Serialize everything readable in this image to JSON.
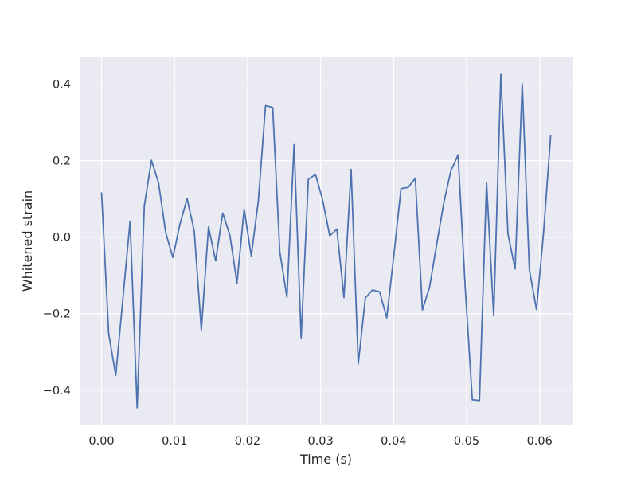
{
  "chart_data": {
    "type": "line",
    "title": "",
    "xlabel": "Time (s)",
    "ylabel": "Whitened strain",
    "xlim": [
      -0.003,
      0.0645
    ],
    "ylim": [
      -0.49,
      0.47
    ],
    "xticks": [
      0.0,
      0.01,
      0.02,
      0.03,
      0.04,
      0.05,
      0.06
    ],
    "xtick_labels": [
      "0.00",
      "0.01",
      "0.02",
      "0.03",
      "0.04",
      "0.05",
      "0.06"
    ],
    "yticks": [
      -0.4,
      -0.2,
      0.0,
      0.2,
      0.4
    ],
    "ytick_labels": [
      "−0.4",
      "−0.2",
      "0.0",
      "0.2",
      "0.4"
    ],
    "grid": true,
    "colors": {
      "background": "#eaeaf2",
      "grid": "#ffffff",
      "line": "#4c72b0"
    },
    "series": [
      {
        "x": [
          0.0,
          0.00098,
          0.00195,
          0.00293,
          0.00391,
          0.00488,
          0.00586,
          0.00684,
          0.00781,
          0.00879,
          0.00977,
          0.01074,
          0.01172,
          0.0127,
          0.01367,
          0.01465,
          0.01563,
          0.0166,
          0.01758,
          0.01855,
          0.01953,
          0.02051,
          0.02148,
          0.02246,
          0.02344,
          0.02441,
          0.02539,
          0.02637,
          0.02734,
          0.02832,
          0.0293,
          0.03027,
          0.03125,
          0.03223,
          0.0332,
          0.03418,
          0.03516,
          0.03613,
          0.03711,
          0.03809,
          0.03906,
          0.04004,
          0.04102,
          0.04199,
          0.04297,
          0.04395,
          0.04492,
          0.0459,
          0.04688,
          0.04785,
          0.04883,
          0.0498,
          0.05078,
          0.05176,
          0.05273,
          0.05371,
          0.05469,
          0.05566,
          0.05664,
          0.05762,
          0.05859,
          0.05957,
          0.06055,
          0.06152
        ],
        "y": [
          0.117,
          -0.252,
          -0.361,
          -0.16,
          0.042,
          -0.446,
          0.082,
          0.201,
          0.142,
          0.012,
          -0.053,
          0.034,
          0.101,
          0.015,
          -0.243,
          0.027,
          -0.062,
          0.063,
          0.005,
          -0.12,
          0.073,
          -0.049,
          0.096,
          0.344,
          0.339,
          -0.037,
          -0.157,
          0.242,
          -0.264,
          0.151,
          0.164,
          0.098,
          0.004,
          0.021,
          -0.158,
          0.177,
          -0.331,
          -0.159,
          -0.138,
          -0.143,
          -0.211,
          -0.046,
          0.127,
          0.13,
          0.154,
          -0.19,
          -0.131,
          -0.019,
          0.09,
          0.174,
          0.215,
          -0.129,
          -0.425,
          -0.427,
          0.143,
          -0.206,
          0.426,
          0.009,
          -0.083,
          0.401,
          -0.085,
          -0.189,
          0.015,
          0.268
        ]
      }
    ]
  }
}
